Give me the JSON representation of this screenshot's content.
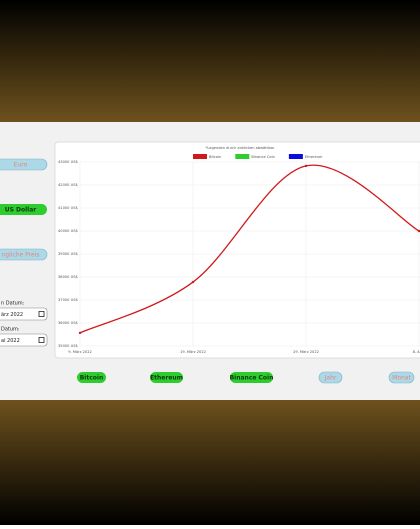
{
  "sidebar": {
    "euro": "Euro",
    "usd": "US Dollar",
    "original": "ngliche Preis",
    "start_label": "n Datum:",
    "start_value": "ärz 2022",
    "end_label": "Datum:",
    "end_value": "ai 2022"
  },
  "buttons": [
    "Bitcoin",
    "Ethereum",
    "Binance Coin",
    "Jahr",
    "Monat"
  ],
  "chart_data": {
    "type": "line",
    "title": "*Legenden durch anklicken abwählbar",
    "categories": [
      "9. März 2022",
      "19. März 2022",
      "29. März 2022",
      "8. April"
    ],
    "series": [
      {
        "name": "Bitcoin",
        "color": "#d0191a",
        "values": [
          35570,
          37780,
          42830,
          40000
        ]
      },
      {
        "name": "Binance Coin",
        "color": "#2ecc2e",
        "values": [
          null,
          null,
          null,
          null
        ]
      },
      {
        "name": "Ethereum",
        "color": "#0b0bdc",
        "values": [
          null,
          null,
          null,
          null
        ]
      }
    ],
    "ylim": [
      35000,
      43000
    ],
    "yticks": [
      {
        "value": 35000,
        "label": "35000 US$"
      },
      {
        "value": 36000,
        "label": "36000 US$"
      },
      {
        "value": 37000,
        "label": "37000 US$"
      },
      {
        "value": 38000,
        "label": "38000 US$"
      },
      {
        "value": 39000,
        "label": "39000 US$"
      },
      {
        "value": 40000,
        "label": "40000 US$"
      },
      {
        "value": 41000,
        "label": "41000 US$"
      },
      {
        "value": 42000,
        "label": "42000 US$"
      },
      {
        "value": 43000,
        "label": "43000 US$"
      }
    ],
    "grid": true
  }
}
